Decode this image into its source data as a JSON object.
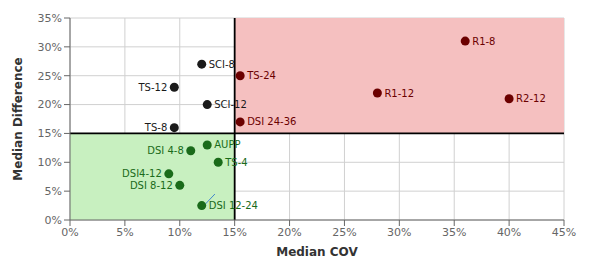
{
  "chart_data": {
    "type": "scatter",
    "xlabel": "Median COV",
    "ylabel": "Median Difference",
    "xlim": [
      0,
      45
    ],
    "ylim": [
      0,
      35
    ],
    "xticks": [
      {
        "value": 0,
        "label": "0%"
      },
      {
        "value": 5,
        "label": "5%"
      },
      {
        "value": 10,
        "label": "10%"
      },
      {
        "value": 15,
        "label": "15%"
      },
      {
        "value": 20,
        "label": "20%"
      },
      {
        "value": 25,
        "label": "25%"
      },
      {
        "value": 30,
        "label": "30%"
      },
      {
        "value": 35,
        "label": "35%"
      },
      {
        "value": 40,
        "label": "40%"
      },
      {
        "value": 45,
        "label": "45%"
      }
    ],
    "yticks": [
      {
        "value": 0,
        "label": "0%"
      },
      {
        "value": 5,
        "label": "5%"
      },
      {
        "value": 10,
        "label": "10%"
      },
      {
        "value": 15,
        "label": "15%"
      },
      {
        "value": 20,
        "label": "20%"
      },
      {
        "value": 25,
        "label": "25%"
      },
      {
        "value": 30,
        "label": "30%"
      },
      {
        "value": 35,
        "label": "35%"
      }
    ],
    "grid": true,
    "points": [
      {
        "label": "R1-8",
        "x": 36,
        "y": 31,
        "color": "#6b0000",
        "label_position": "right"
      },
      {
        "label": "R1-12",
        "x": 28,
        "y": 22,
        "color": "#6b0000",
        "label_position": "right"
      },
      {
        "label": "R2-12",
        "x": 40,
        "y": 21,
        "color": "#6b0000",
        "label_position": "right"
      },
      {
        "label": "TS-24",
        "x": 15.5,
        "y": 25,
        "color": "#6b0000",
        "label_position": "right"
      },
      {
        "label": "DSI 24-36",
        "x": 15.5,
        "y": 17,
        "color": "#6b0000",
        "label_position": "right"
      },
      {
        "label": "SCI-8",
        "x": 12,
        "y": 27,
        "color": "#1a1a1a",
        "label_position": "right"
      },
      {
        "label": "SCI-12",
        "x": 12.5,
        "y": 20,
        "color": "#1a1a1a",
        "label_position": "right"
      },
      {
        "label": "TS-12",
        "x": 9.5,
        "y": 23,
        "color": "#1a1a1a",
        "label_position": "left"
      },
      {
        "label": "TS-8",
        "x": 9.5,
        "y": 16,
        "color": "#1a1a1a",
        "label_position": "left"
      },
      {
        "label": "DSI 4-8",
        "x": 11,
        "y": 12,
        "color": "#1a6b1a",
        "label_position": "left"
      },
      {
        "label": "AUPP",
        "x": 12.5,
        "y": 13,
        "color": "#1a6b1a",
        "label_position": "right"
      },
      {
        "label": "TS-4",
        "x": 13.5,
        "y": 10,
        "color": "#1a6b1a",
        "label_position": "right"
      },
      {
        "label": "DSI4-12",
        "x": 9,
        "y": 8,
        "color": "#1a6b1a",
        "label_position": "left"
      },
      {
        "label": "DSI 8-12",
        "x": 10,
        "y": 6,
        "color": "#1a6b1a",
        "label_position": "left"
      },
      {
        "label": "DSI 12-24",
        "x": 12,
        "y": 2.5,
        "color": "#1a6b1a",
        "label_position": "right"
      }
    ],
    "regions": [
      {
        "x": [
          0,
          15
        ],
        "y": [
          0,
          15
        ],
        "color": "#c8f0c0"
      },
      {
        "x": [
          15,
          45
        ],
        "y": [
          15,
          35
        ],
        "color": "#f5c0c0"
      }
    ],
    "threshold_x": 15,
    "threshold_y": 15,
    "threshold_color": "#000000",
    "segments": [
      {
        "x": [
          13.2,
          12.3
        ],
        "y": [
          4.5,
          2.7
        ],
        "color": "#4488cc"
      }
    ]
  }
}
